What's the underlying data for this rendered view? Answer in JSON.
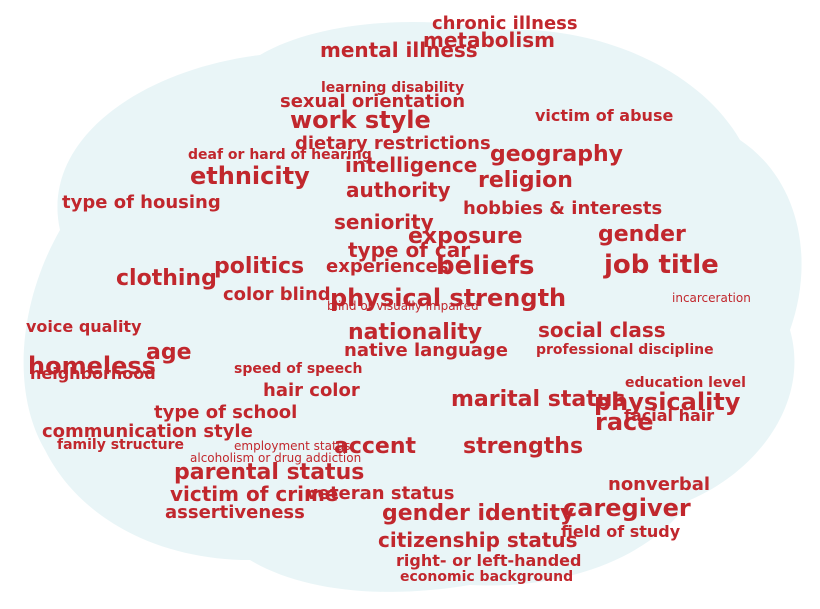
{
  "colors": {
    "word": "#c1272d",
    "brain": "#e9f5f7"
  },
  "words": [
    "physical strength",
    "work style",
    "nationality",
    "gender identity",
    "citizenship status",
    "beliefs",
    "exposure",
    "geography",
    "religion",
    "seniority",
    "job title",
    "politics",
    "ethnicity",
    "homeless",
    "clothing",
    "gender",
    "race",
    "age",
    "accent",
    "strengths",
    "caregiver",
    "physicality",
    "marital status",
    "parental status",
    "victim of crime",
    "assertiveness",
    "type of school",
    "communication style",
    "veteran status",
    "experiences",
    "sexual orientation",
    "mental illness",
    "metabolism",
    "chronic illness",
    "intelligence",
    "dietary restrictions",
    "type of car",
    "authority",
    "hobbies & interests",
    "color blind",
    "hair color",
    "social class",
    "professional discipline",
    "native language",
    "blind or visually impaired",
    "nonverbal",
    "field of study",
    "right- or left-handed",
    "economic background",
    "education level",
    "facial hair",
    "type of housing",
    "neighborhood",
    "voice quality",
    "incarceration",
    "learning disability",
    "deaf or hard of hearing",
    "alcoholism or drug addiction",
    "speed of speech",
    "family structure",
    "employment status",
    "victim of abuse"
  ]
}
